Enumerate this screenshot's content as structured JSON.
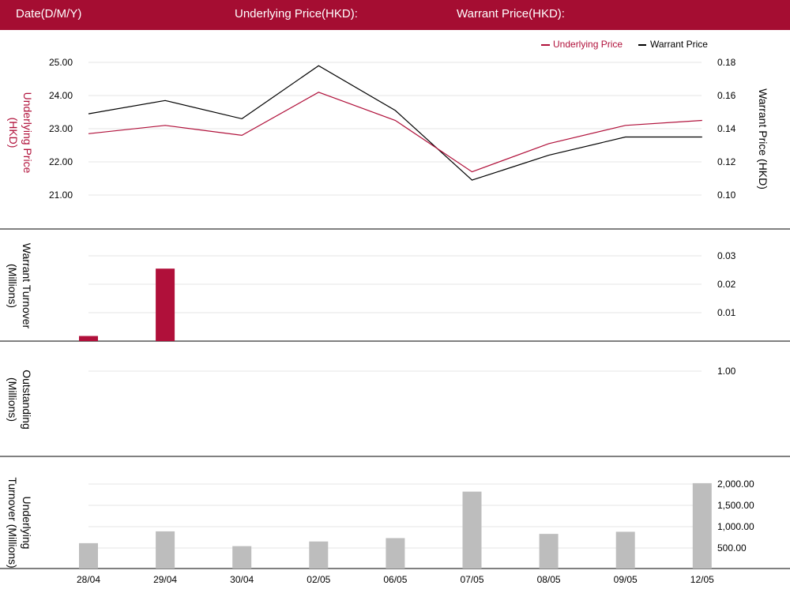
{
  "header": {
    "date_label": "Date(D/M/Y)",
    "underlying_label": "Underlying Price(HKD):",
    "warrant_label": "Warrant Price(HKD):"
  },
  "colors": {
    "brand": "#a50d32",
    "underlying_line": "#b0103a",
    "warrant_line": "#000000",
    "warrant_turnover_bar": "#b0103a",
    "underlying_turnover_bar": "#bdbdbd",
    "grid": "#e6e6e6"
  },
  "chart_data": [
    {
      "type": "line",
      "panel": "price",
      "categories": [
        "28/04",
        "29/04",
        "30/04",
        "02/05",
        "06/05",
        "07/05",
        "08/05",
        "09/05",
        "12/05"
      ],
      "legend": {
        "position": "top-right",
        "entries": [
          "Underlying Price",
          "Warrant Price"
        ]
      },
      "ylabel_left": "Underlying Price (HKD)",
      "ylabel_right": "Warrant  Price (HKD)",
      "left_axis": {
        "ticks": [
          "25.00",
          "24.00",
          "23.00",
          "22.00",
          "21.00"
        ],
        "ylim": [
          21.0,
          25.0
        ]
      },
      "right_axis": {
        "ticks": [
          "0.18",
          "0.16",
          "0.14",
          "0.12",
          "0.10"
        ],
        "ylim": [
          0.1,
          0.18
        ]
      },
      "series": [
        {
          "name": "Underlying Price",
          "axis": "left",
          "values": [
            22.85,
            23.1,
            22.8,
            24.1,
            23.25,
            21.7,
            22.55,
            23.1,
            23.25
          ]
        },
        {
          "name": "Warrant Price",
          "axis": "right",
          "values": [
            0.149,
            0.157,
            0.146,
            0.178,
            0.151,
            0.109,
            0.124,
            0.135,
            0.135
          ]
        }
      ]
    },
    {
      "type": "bar",
      "panel": "warrant_turnover",
      "ylabel": "Warrant  Turnover (Millions)",
      "right_axis": {
        "ticks": [
          "0.03",
          "0.02",
          "0.01"
        ],
        "ylim": [
          0,
          0.03
        ]
      },
      "values": [
        0.0018,
        0.0255,
        0,
        0,
        0,
        0,
        0,
        0,
        0
      ]
    },
    {
      "type": "line",
      "panel": "outstanding",
      "ylabel": "Outstanding (Millions)",
      "right_axis": {
        "ticks": [
          "1.00"
        ]
      },
      "values": []
    },
    {
      "type": "bar",
      "panel": "underlying_turnover",
      "ylabel": "Underlying Turnover (Millions)",
      "right_axis": {
        "ticks": [
          "2,000.00",
          "1,500.00",
          "1,000.00",
          "500.00"
        ],
        "ylim": [
          0,
          2000
        ]
      },
      "values": [
        600,
        880,
        530,
        640,
        720,
        1820,
        820,
        870,
        2020
      ]
    }
  ]
}
